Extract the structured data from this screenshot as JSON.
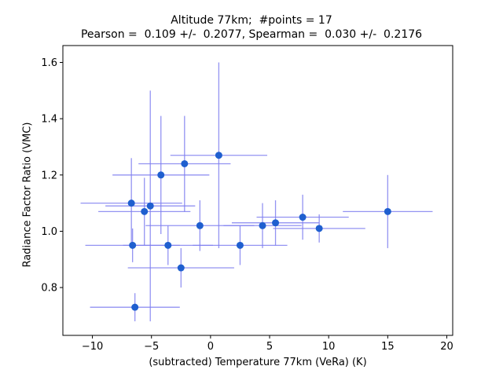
{
  "chart_data": {
    "type": "scatter",
    "title": "Altitude 77km;  #points = 17",
    "subtitle": "Pearson =  0.109 +/-  0.2077, Spearman =  0.030 +/-  0.2176",
    "xlabel": "(subtracted) Temperature 77km (VeRa) (K)",
    "ylabel": "Radiance Factor Ratio (VMC)",
    "xlim": [
      -12.5,
      20.5
    ],
    "ylim": [
      0.63,
      1.66
    ],
    "xticks": [
      -10,
      -5,
      0,
      5,
      10,
      15,
      20
    ],
    "yticks": [
      0.8,
      1.0,
      1.2,
      1.4,
      1.6
    ],
    "grid": false,
    "marker_color": "#1f5fcf",
    "errorbar_color": "#8080f0",
    "points": [
      {
        "x": -6.7,
        "y": 1.1,
        "xerr": 4.3,
        "yerr": 0.16
      },
      {
        "x": -6.6,
        "y": 0.95,
        "xerr": 4.0,
        "yerr": 0.06
      },
      {
        "x": -6.4,
        "y": 0.73,
        "xerr": 3.8,
        "yerr": 0.05
      },
      {
        "x": -5.6,
        "y": 1.07,
        "xerr": 3.9,
        "yerr": 0.12
      },
      {
        "x": -5.1,
        "y": 1.09,
        "xerr": 3.8,
        "yerr": 0.41
      },
      {
        "x": -4.2,
        "y": 1.2,
        "xerr": 4.1,
        "yerr": 0.21
      },
      {
        "x": -3.6,
        "y": 0.95,
        "xerr": 3.8,
        "yerr": 0.07
      },
      {
        "x": -2.5,
        "y": 0.87,
        "xerr": 4.5,
        "yerr": 0.07
      },
      {
        "x": -2.2,
        "y": 1.24,
        "xerr": 3.9,
        "yerr": 0.17
      },
      {
        "x": -0.9,
        "y": 1.02,
        "xerr": 4.6,
        "yerr": 0.09
      },
      {
        "x": 0.7,
        "y": 1.27,
        "xerr": 4.1,
        "yerr": 0.33
      },
      {
        "x": 2.5,
        "y": 0.95,
        "xerr": 4.0,
        "yerr": 0.07
      },
      {
        "x": 4.4,
        "y": 1.02,
        "xerr": 3.3,
        "yerr": 0.08
      },
      {
        "x": 5.5,
        "y": 1.03,
        "xerr": 3.7,
        "yerr": 0.08
      },
      {
        "x": 7.8,
        "y": 1.05,
        "xerr": 3.9,
        "yerr": 0.08
      },
      {
        "x": 9.2,
        "y": 1.01,
        "xerr": 3.9,
        "yerr": 0.05
      },
      {
        "x": 15.0,
        "y": 1.07,
        "xerr": 3.8,
        "yerr": 0.13
      }
    ]
  }
}
